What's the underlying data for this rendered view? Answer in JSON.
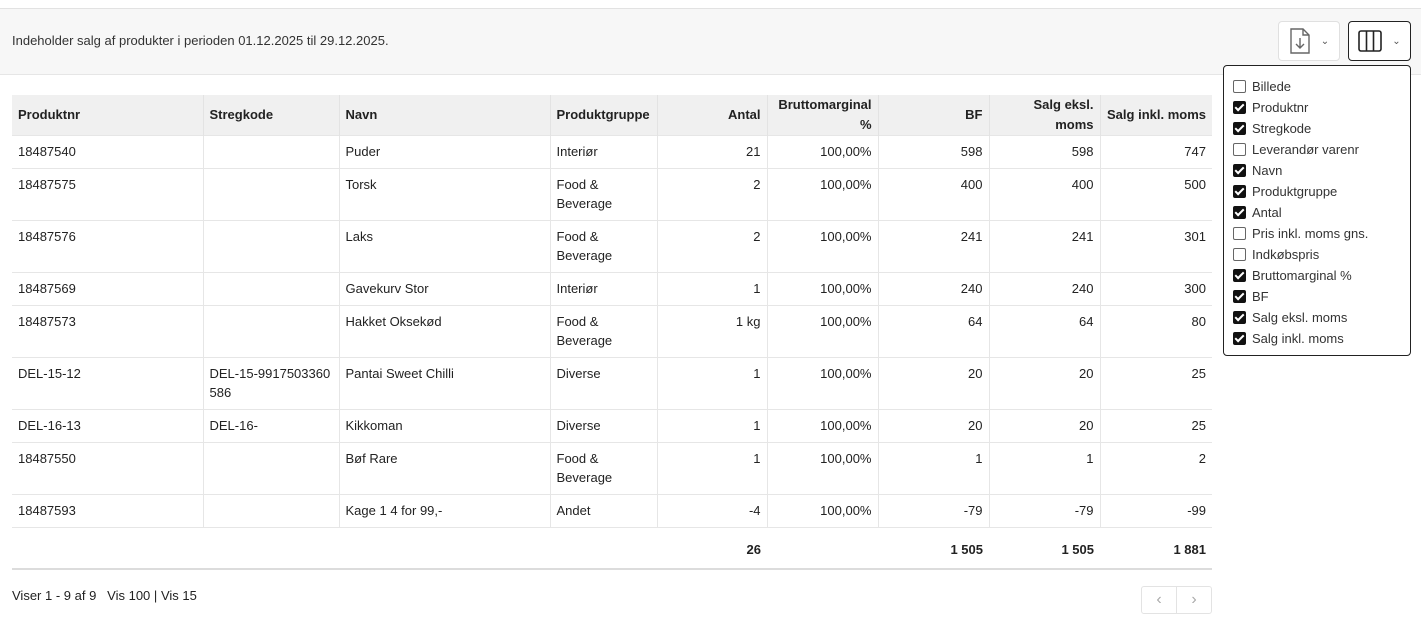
{
  "header": {
    "period_text": "Indeholder salg af produkter i perioden 01.12.2025 til 29.12.2025.",
    "export_icon": "file-download-icon",
    "columns_icon": "columns-icon"
  },
  "table": {
    "headers": [
      "Produktnr",
      "Stregkode",
      "Navn",
      "Produktgruppe",
      "Antal",
      "Bruttomarginal %",
      "BF",
      "Salg eksl. moms",
      "Salg inkl. moms"
    ],
    "rows": [
      [
        "18487540",
        "",
        "Puder",
        "Interiør",
        "21",
        "100,00%",
        "598",
        "598",
        "747"
      ],
      [
        "18487575",
        "",
        "Torsk",
        "Food & Beverage",
        "2",
        "100,00%",
        "400",
        "400",
        "500"
      ],
      [
        "18487576",
        "",
        "Laks",
        "Food & Beverage",
        "2",
        "100,00%",
        "241",
        "241",
        "301"
      ],
      [
        "18487569",
        "",
        "Gavekurv Stor",
        "Interiør",
        "1",
        "100,00%",
        "240",
        "240",
        "300"
      ],
      [
        "18487573",
        "",
        "Hakket Oksekød",
        "Food & Beverage",
        "1 kg",
        "100,00%",
        "64",
        "64",
        "80"
      ],
      [
        "DEL-15-12",
        "DEL-15-9917503360586",
        "Pantai Sweet Chilli",
        "Diverse",
        "1",
        "100,00%",
        "20",
        "20",
        "25"
      ],
      [
        "DEL-16-13",
        "DEL-16-",
        "Kikkoman",
        "Diverse",
        "1",
        "100,00%",
        "20",
        "20",
        "25"
      ],
      [
        "18487550",
        "",
        "Bøf Rare",
        "Food & Beverage",
        "1",
        "100,00%",
        "1",
        "1",
        "2"
      ],
      [
        "18487593",
        "",
        "Kage 1 4 for 99,-",
        "Andet",
        "-4",
        "100,00%",
        "-79",
        "-79",
        "-99"
      ]
    ],
    "totals": [
      "",
      "",
      "",
      "",
      "26",
      "",
      "1 505",
      "1 505",
      "1 881"
    ]
  },
  "footer": {
    "showing": "Viser 1 - 9 af 9",
    "show100": "Vis 100",
    "separator": "|",
    "show15": "Vis 15",
    "prev": "‹",
    "next": "›"
  },
  "column_menu": {
    "options": [
      {
        "label": "Billede",
        "checked": false
      },
      {
        "label": "Produktnr",
        "checked": true
      },
      {
        "label": "Stregkode",
        "checked": true
      },
      {
        "label": "Leverandør varenr",
        "checked": false
      },
      {
        "label": "Navn",
        "checked": true
      },
      {
        "label": "Produktgruppe",
        "checked": true
      },
      {
        "label": "Antal",
        "checked": true
      },
      {
        "label": "Pris inkl. moms gns.",
        "checked": false
      },
      {
        "label": "Indkøbspris",
        "checked": false
      },
      {
        "label": "Bruttomarginal %",
        "checked": true
      },
      {
        "label": "BF",
        "checked": true
      },
      {
        "label": "Salg eksl. moms",
        "checked": true
      },
      {
        "label": "Salg inkl. moms",
        "checked": true
      }
    ]
  }
}
